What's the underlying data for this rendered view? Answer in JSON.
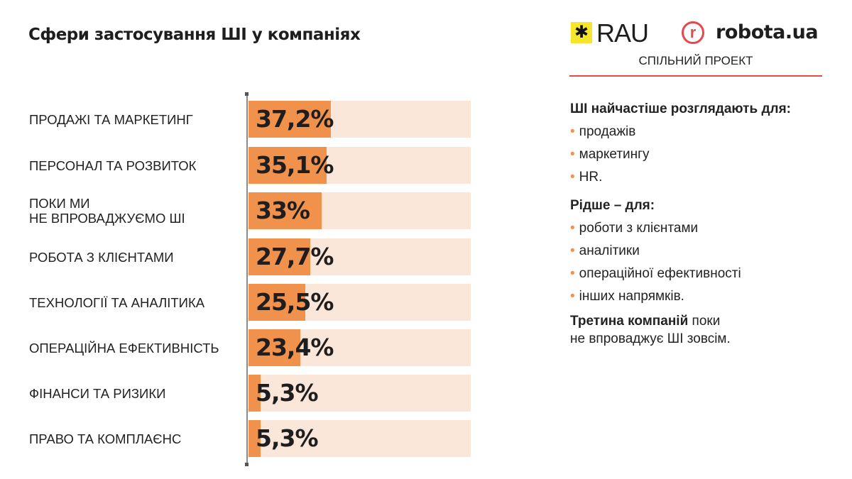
{
  "title": "Сфери застосування ШІ у компаніях",
  "logos": {
    "rau": "RAU",
    "robota": "robota.ua",
    "robota_mark": "r",
    "joint": "СПІЛЬНИЙ ПРОЕКТ"
  },
  "colors": {
    "fill": "#f0924c",
    "track": "#fbe6da",
    "accent": "#e8474c"
  },
  "chart_data": {
    "type": "bar",
    "orientation": "horizontal",
    "title": "Сфери застосування ШІ у компаніях",
    "categories": [
      "ПРОДАЖІ ТА МАРКЕТИНГ",
      "ПЕРСОНАЛ ТА РОЗВИТОК",
      "ПОКИ МИ\nНЕ ВПРОВАДЖУЄМО ШІ",
      "РОБОТА З КЛІЄНТАМИ",
      "ТЕХНОЛОГІЇ ТА АНАЛІТИКА",
      "ОПЕРАЦІЙНА ЕФЕКТИВНІСТЬ",
      "ФІНАНСИ ТА РИЗИКИ",
      "ПРАВО ТА КОМПЛАЄНС"
    ],
    "values": [
      37.2,
      35.1,
      33,
      27.7,
      25.5,
      23.4,
      5.3,
      5.3
    ],
    "labels": [
      "37,2%",
      "35,1%",
      "33%",
      "27,7%",
      "25,5%",
      "23,4%",
      "5,3%",
      "5,3%"
    ],
    "xlim": [
      0,
      100
    ],
    "unit": "%"
  },
  "side": {
    "h1": "ШІ найчастіше розглядають для:",
    "list1": [
      "продажів",
      "маркетингу",
      "HR."
    ],
    "h2": "Рідше – для:",
    "list2": [
      "роботи з клієнтами",
      "аналітики",
      "операційної ефективності",
      "інших напрямків."
    ],
    "final_bold": "Третина компаній",
    "final_rest1": " поки",
    "final_rest2": "не впроваджує ШІ зовсім."
  }
}
